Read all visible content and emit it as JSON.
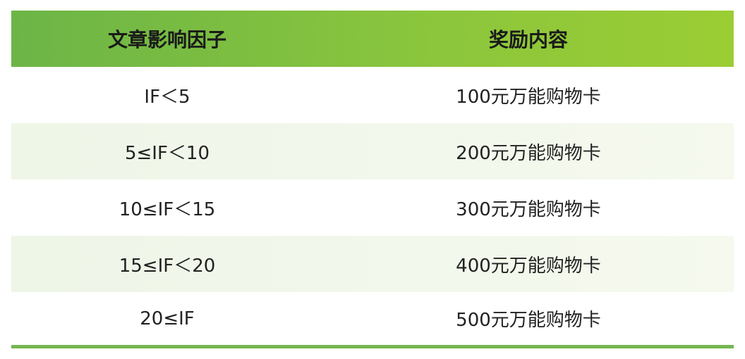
{
  "table": {
    "headers": [
      "文章影响因子",
      "奖励内容"
    ],
    "rows": [
      {
        "impact_factor": "IF＜5",
        "reward": "100元万能购物卡"
      },
      {
        "impact_factor": "5≤IF＜10",
        "reward": "200元万能购物卡"
      },
      {
        "impact_factor": "10≤IF＜15",
        "reward": "300元万能购物卡"
      },
      {
        "impact_factor": "15≤IF＜20",
        "reward": "400元万能购物卡"
      },
      {
        "impact_factor": "20≤IF",
        "reward": "500元万能购物卡"
      }
    ]
  },
  "colors": {
    "header_start": "#6cb547",
    "header_end": "#9bcd34",
    "alt_row": "#eef6e8",
    "bottom_rule": "#74b650"
  }
}
